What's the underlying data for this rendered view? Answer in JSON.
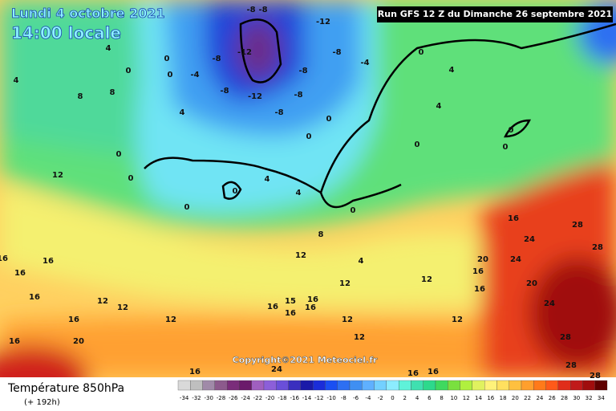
{
  "header": {
    "date": "Lundi 4 octobre 2021",
    "time": "14:00 locale",
    "run": "Run GFS 12 Z du Dimanche 26 septembre 2021"
  },
  "copyright": "Copyright©2021 Meteociel.fr",
  "footer": {
    "title": "Température 850hPa",
    "lead": "(+ 192h)"
  },
  "legend": {
    "values": [
      -34,
      -32,
      -30,
      -28,
      -26,
      -24,
      -22,
      -20,
      -18,
      -16,
      -14,
      -12,
      -10,
      -8,
      -6,
      -4,
      -2,
      0,
      2,
      4,
      6,
      8,
      10,
      12,
      14,
      16,
      18,
      20,
      22,
      24,
      26,
      28,
      30,
      32,
      34
    ],
    "colors": [
      "#d9d9d9",
      "#bfbfbf",
      "#a08aa8",
      "#8c5a8c",
      "#7a2d7a",
      "#6b1a6b",
      "#a05fbf",
      "#8c5fd9",
      "#6a4fd9",
      "#3a2fbf",
      "#1a1aa8",
      "#1a2dd9",
      "#1a4ff2",
      "#2d6ff2",
      "#3f8ff2",
      "#5fb0ff",
      "#73d0ff",
      "#8cecff",
      "#5ff2d9",
      "#3fe0b0",
      "#2dd98c",
      "#3fd95f",
      "#7ae03f",
      "#b0f03f",
      "#e0f25f",
      "#fff27a",
      "#ffe05f",
      "#ffc03f",
      "#ff9f2d",
      "#ff7a1a",
      "#ff5a1a",
      "#e02d1a",
      "#c01a1a",
      "#a00d0d",
      "#600000"
    ]
  },
  "map": {
    "labels": [
      "4",
      "0",
      "4",
      "8",
      "8",
      "0",
      "0",
      "-4",
      "-8",
      "-8",
      "-8",
      "-12",
      "-12",
      "-12",
      "-8",
      "-8",
      "-8",
      "-8",
      "-8",
      "-4",
      "0",
      "0",
      "4",
      "0",
      "0",
      "12",
      "0",
      "0",
      "0",
      "4",
      "4",
      "0",
      "0",
      "0",
      "16",
      "24",
      "28",
      "28",
      "24",
      "20",
      "16",
      "16",
      "20",
      "24",
      "28",
      "28",
      "28",
      "16",
      "16",
      "16",
      "16",
      "12",
      "12",
      "12",
      "20",
      "16",
      "16",
      "16",
      "15",
      "16",
      "16",
      "16",
      "12",
      "12",
      "12",
      "16",
      "16",
      "24",
      "16",
      "12",
      "12",
      "4",
      "8",
      "0",
      "12",
      "4",
      "4"
    ]
  }
}
